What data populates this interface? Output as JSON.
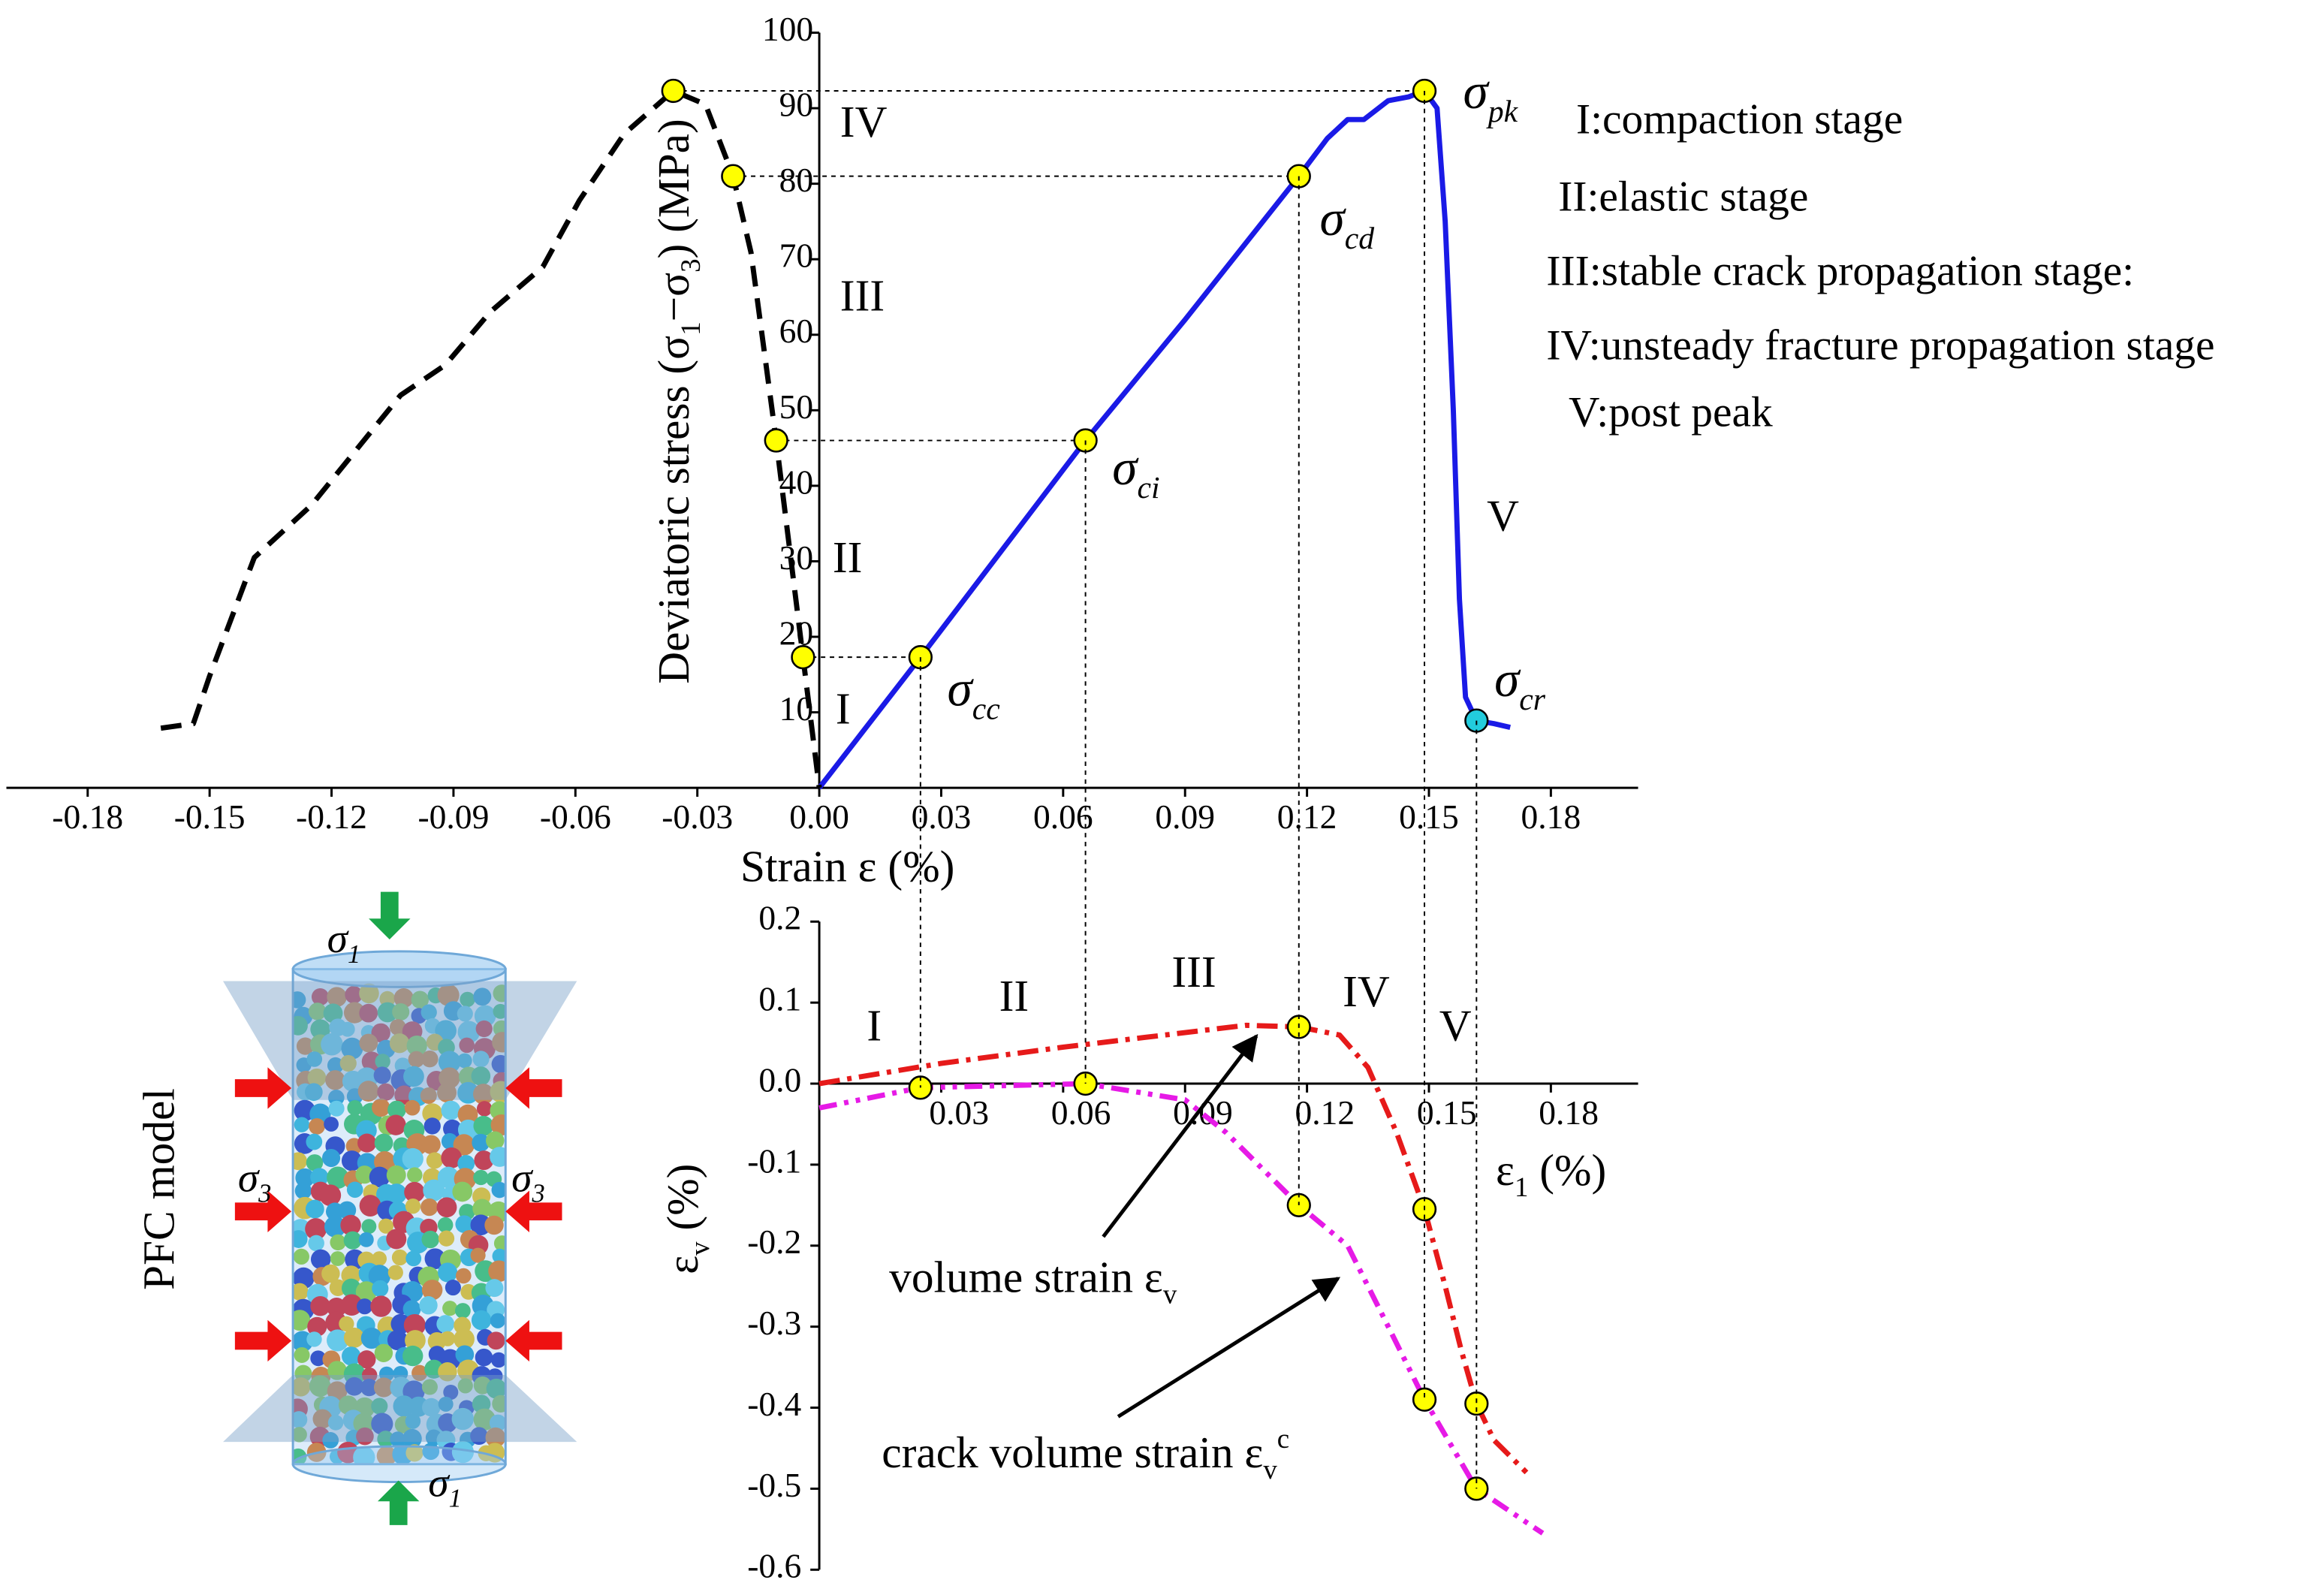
{
  "chart_data": [
    {
      "type": "line",
      "xlabel": "Strain ε (%)",
      "ylabel": [
        "Deviatoric stress (σ",
        {
          "sub": "1"
        },
        "−σ",
        {
          "sub": "3"
        },
        ") (MPa)"
      ],
      "xlim": [
        -0.2,
        0.2
      ],
      "ylim": [
        0,
        100
      ],
      "xticks": [
        -0.18,
        -0.15,
        -0.12,
        -0.09,
        -0.06,
        -0.03,
        {
          "value": 0,
          "label": "0.00"
        },
        0.03,
        0.06,
        0.09,
        0.12,
        0.15,
        0.18
      ],
      "yticks": [
        10,
        20,
        30,
        40,
        50,
        60,
        70,
        80,
        90,
        100
      ],
      "series": [
        {
          "color": "#1a1ae6",
          "dash": "solid",
          "x": [
            0,
            0.0249,
            0.0655,
            0.09,
            0.118,
            0.125,
            0.13,
            0.134,
            0.14,
            0.145,
            0.1489,
            0.152,
            0.154,
            0.156,
            0.1575,
            0.159,
            0.1617,
            0.166,
            0.17
          ],
          "values": [
            0,
            17.3,
            46,
            62,
            81,
            86,
            88.5,
            88.5,
            91,
            91.5,
            92.3,
            90,
            75,
            50,
            25,
            12,
            8.9,
            8.5,
            8
          ]
        },
        {
          "color": "#000000",
          "dash": "dashed",
          "x": [
            -0.162,
            -0.154,
            -0.15,
            -0.139,
            -0.125,
            -0.103,
            -0.092,
            -0.081,
            -0.068,
            -0.059,
            -0.048,
            -0.0359,
            -0.028,
            -0.0212,
            -0.0168,
            -0.0106,
            -0.004,
            0
          ],
          "values": [
            7.9,
            8.5,
            14.8,
            30.5,
            37.4,
            52,
            56,
            63,
            69,
            77.8,
            86.6,
            92.3,
            90.5,
            81,
            70.9,
            46,
            17.3,
            0
          ]
        }
      ],
      "points": [
        {
          "x": 0.0249,
          "y": 17.3,
          "color": "#ffff00"
        },
        {
          "x": 0.0655,
          "y": 46,
          "color": "#ffff00"
        },
        {
          "x": 0.118,
          "y": 81,
          "color": "#ffff00"
        },
        {
          "x": 0.1489,
          "y": 92.3,
          "color": "#ffff00"
        },
        {
          "x": 0.1617,
          "y": 8.9,
          "color": "#22ccdd"
        },
        {
          "x": -0.004,
          "y": 17.3,
          "color": "#ffff00"
        },
        {
          "x": -0.0106,
          "y": 46,
          "color": "#ffff00"
        },
        {
          "x": -0.0212,
          "y": 81,
          "color": "#ffff00"
        },
        {
          "x": -0.0359,
          "y": 92.3,
          "color": "#ffff00"
        }
      ],
      "point_labels": [
        [
          "σ",
          {
            "sub": "cc"
          }
        ],
        [
          "σ",
          {
            "sub": "ci"
          }
        ],
        [
          "σ",
          {
            "sub": "cd"
          }
        ],
        [
          "σ",
          {
            "sub": "pk"
          }
        ],
        [
          "σ",
          {
            "sub": "cr"
          }
        ]
      ],
      "stage_labels": [
        "I",
        "II",
        "III",
        "IV",
        "V"
      ],
      "stage_descriptions": [
        "I:compaction stage",
        "II:elastic stage",
        "III:stable crack propagation stage:",
        "IV:unsteady fracture propagation stage",
        "V:post peak"
      ]
    },
    {
      "type": "line",
      "xlabel": [
        "ε",
        {
          "sub": "1"
        },
        " (%)"
      ],
      "ylabel": [
        "ε",
        {
          "sub": "v"
        },
        " (%)"
      ],
      "xlim": [
        0,
        0.2
      ],
      "ylim": [
        -0.6,
        0.2
      ],
      "xticks": [
        0.03,
        0.06,
        0.09,
        0.12,
        0.15,
        0.18
      ],
      "yticks": [
        0.2,
        0.1,
        {
          "value": 0,
          "label": "0.0"
        },
        -0.1,
        -0.2,
        -0.3,
        -0.4,
        -0.5,
        -0.6
      ],
      "series": [
        {
          "color": "#e61a1a",
          "dash": "dashdot",
          "x": [
            0,
            0.03,
            0.06,
            0.09,
            0.105,
            0.118,
            0.128,
            0.135,
            0.142,
            0.1489,
            0.154,
            0.158,
            0.1617,
            0.166,
            0.174
          ],
          "values": [
            0,
            0.025,
            0.045,
            0.063,
            0.072,
            0.07,
            0.06,
            0.02,
            -0.06,
            -0.155,
            -0.25,
            -0.33,
            -0.395,
            -0.44,
            -0.48
          ]
        },
        {
          "color": "#e61ae6",
          "dash": "dashdotdot",
          "x": [
            0,
            0.0249,
            0.0655,
            0.09,
            0.1,
            0.118,
            0.13,
            0.14,
            0.1489,
            0.1617,
            0.175,
            0.178
          ],
          "values": [
            -0.03,
            -0.005,
            0,
            -0.02,
            -0.06,
            -0.15,
            -0.2,
            -0.3,
            -0.39,
            -0.5,
            -0.545,
            -0.555
          ]
        }
      ],
      "points": [
        {
          "x": 0.0249,
          "y": -0.005,
          "color": "#ffff00"
        },
        {
          "x": 0.0655,
          "y": 0,
          "color": "#ffff00"
        },
        {
          "x": 0.118,
          "y": 0.07,
          "color": "#ffff00"
        },
        {
          "x": 0.118,
          "y": -0.15,
          "color": "#ffff00"
        },
        {
          "x": 0.1489,
          "y": -0.155,
          "color": "#ffff00"
        },
        {
          "x": 0.1489,
          "y": -0.39,
          "color": "#ffff00"
        },
        {
          "x": 0.1617,
          "y": -0.395,
          "color": "#ffff00"
        },
        {
          "x": 0.1617,
          "y": -0.5,
          "color": "#ffff00"
        }
      ],
      "stage_labels": [
        "I",
        "II",
        "III",
        "IV",
        "V"
      ],
      "annotations": [
        [
          "volume strain ε",
          {
            "sub": "v"
          }
        ],
        [
          "crack volume strain ε",
          {
            "sub": "v"
          },
          {
            "sup": "c"
          }
        ]
      ]
    }
  ],
  "model": {
    "title": "PFC model",
    "sigma1": [
      "σ",
      {
        "sub": "1"
      }
    ],
    "sigma3": [
      "σ",
      {
        "sub": "3"
      }
    ]
  }
}
